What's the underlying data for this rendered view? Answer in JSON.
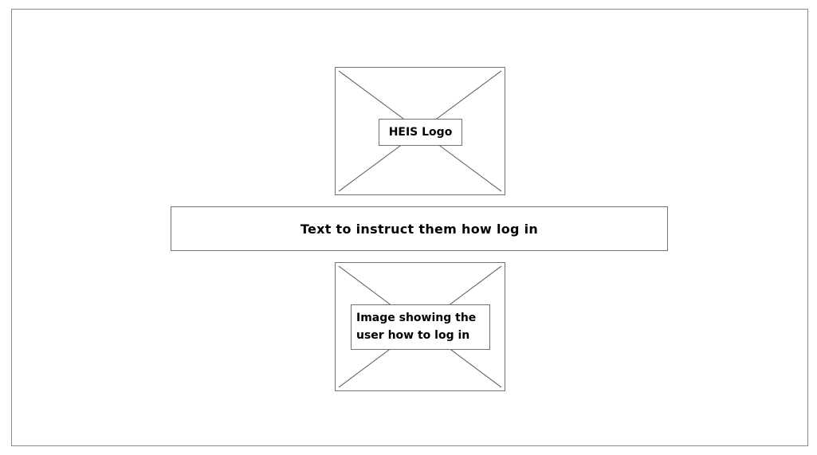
{
  "logo_placeholder": {
    "caption": "HEIS Logo"
  },
  "instructions": {
    "text": "Text to instruct them how log in"
  },
  "image_placeholder": {
    "caption": "Image showing the user how to log in"
  }
}
